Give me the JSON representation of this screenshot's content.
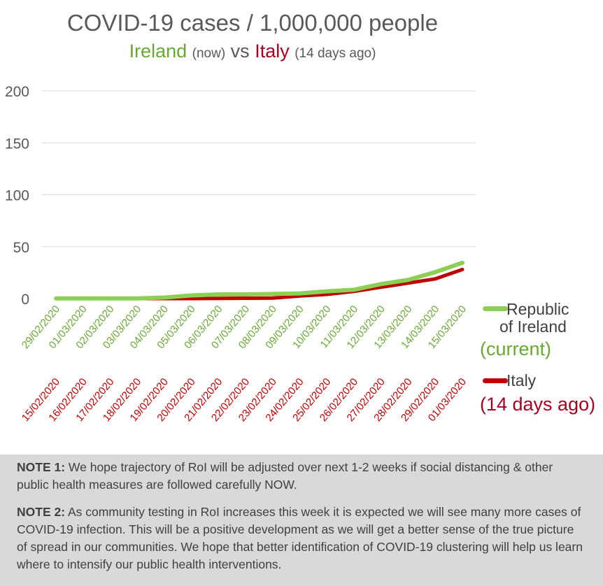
{
  "title": "COVID-19 cases / 1,000,000 people",
  "subtitle": {
    "ireland": "Ireland",
    "ireland_note": "(now)",
    "vs": "vs",
    "italy": "Italy",
    "italy_note": "(14 days ago)"
  },
  "legend": {
    "roi_line1": "Republic",
    "roi_line2": "of Ireland",
    "roi_note": "(current)",
    "italy": "Italy",
    "italy_note": "(14 days ago)"
  },
  "colors": {
    "roi": "#8ccf55",
    "italy": "#c00000",
    "roi_text": "#6aa834",
    "italy_text": "#a50021",
    "axis_text": "#595959",
    "grid": "#d9d9d9"
  },
  "chart_data": {
    "type": "line",
    "ylim": [
      0,
      200
    ],
    "yticks": [
      0,
      50,
      100,
      150,
      200
    ],
    "grid": true,
    "legend_placement": "right",
    "x_roi": [
      "29/02/2020",
      "01/03/2020",
      "02/03/2020",
      "03/03/2020",
      "04/03/2020",
      "05/03/2020",
      "06/03/2020",
      "07/03/2020",
      "08/03/2020",
      "09/03/2020",
      "10/03/2020",
      "11/03/2020",
      "12/03/2020",
      "13/03/2020",
      "14/03/2020",
      "15/03/2020"
    ],
    "x_italy": [
      "15/02/2020",
      "16/02/2020",
      "17/02/2020",
      "18/02/2020",
      "19/02/2020",
      "20/02/2020",
      "21/02/2020",
      "22/02/2020",
      "23/02/2020",
      "24/02/2020",
      "25/02/2020",
      "26/02/2020",
      "27/02/2020",
      "28/02/2020",
      "29/02/2020",
      "01/03/2020"
    ],
    "series": [
      {
        "name": "Republic of Ireland (current)",
        "values": [
          0.2,
          0.2,
          0.2,
          0.2,
          1,
          3,
          4,
          4,
          4.5,
          5,
          7,
          8.5,
          14,
          18,
          25.5,
          34.5
        ]
      },
      {
        "name": "Italy (14 days ago)",
        "values": [
          0,
          0,
          0,
          0,
          0,
          0,
          0.2,
          0.3,
          0.5,
          2.5,
          4,
          7,
          11,
          15,
          19,
          28
        ]
      }
    ]
  },
  "notes": [
    {
      "label": "NOTE 1:",
      "text": "We hope trajectory of RoI will be adjusted over next 1-2 weeks if social distancing & other public health measures are followed carefully NOW."
    },
    {
      "label": "NOTE 2:",
      "text": "As community testing in RoI increases this week it is expected we will see many more cases of COVID-19 infection. This will be a positive development as we will get a better sense of the true picture of spread in our communities. We hope that better identification of COVID-19 clustering will help us learn where to intensify our public health interventions."
    }
  ]
}
